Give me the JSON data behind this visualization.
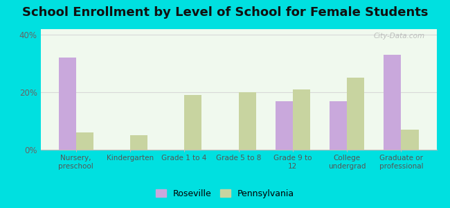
{
  "title": "School Enrollment by Level of School for Female Students",
  "categories": [
    "Nursery,\npreschool",
    "Kindergarten",
    "Grade 1 to 4",
    "Grade 5 to 8",
    "Grade 9 to\n12",
    "College\nundergrad",
    "Graduate or\nprofessional"
  ],
  "roseville": [
    32,
    0,
    0,
    0,
    17,
    17,
    33
  ],
  "pennsylvania": [
    6,
    5,
    19,
    20,
    21,
    25,
    7
  ],
  "roseville_color": "#c9a8dc",
  "pennsylvania_color": "#c8d4a0",
  "background_outer": "#00e0e0",
  "background_inner": "#f0f9ee",
  "ylim": [
    0,
    42
  ],
  "yticks": [
    0,
    20,
    40
  ],
  "ytick_labels": [
    "0%",
    "20%",
    "40%"
  ],
  "bar_width": 0.32,
  "title_fontsize": 13,
  "legend_labels": [
    "Roseville",
    "Pennsylvania"
  ],
  "grid_color": "#d8d8d8"
}
